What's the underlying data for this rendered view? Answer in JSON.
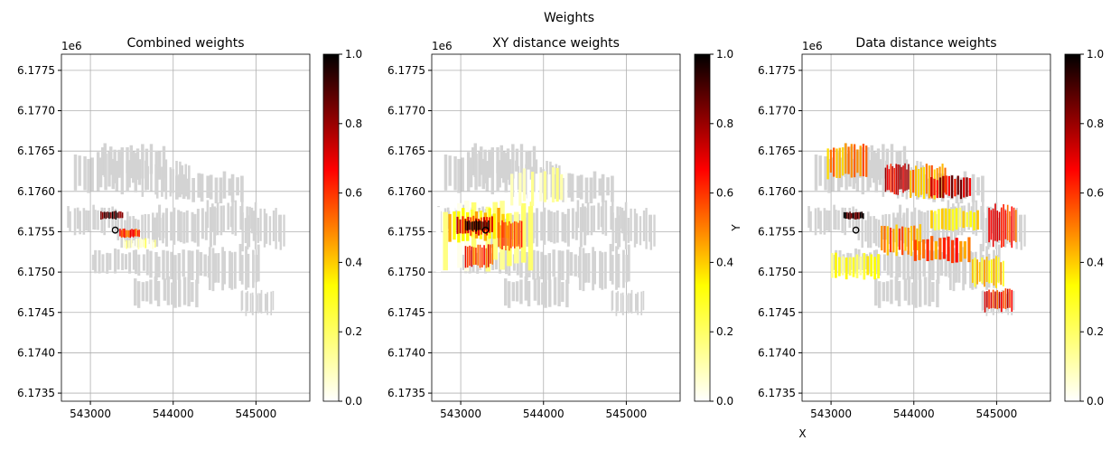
{
  "figure": {
    "title": "Weights"
  },
  "colormap": {
    "name": "hot_r",
    "stops": [
      "#ffffff",
      "#ffff00",
      "#ff0000",
      "#000000"
    ]
  },
  "background_color": "#d3d3d3",
  "point_marker": {
    "x": 543300,
    "y": 6175520
  },
  "chart_data": [
    {
      "type": "scatter",
      "title": "Combined weights",
      "xlabel": "",
      "ylabel": "",
      "xlim": [
        542650,
        545650
      ],
      "ylim": [
        6173400,
        6177700
      ],
      "xticks": [
        543000,
        544000,
        545000
      ],
      "yticks": [
        6.1735,
        6.174,
        6.1745,
        6.175,
        6.1755,
        6.176,
        6.1765,
        6.177,
        6.1775
      ],
      "y_offset_label": "1e6",
      "grid": true,
      "colorbar": {
        "range": [
          0,
          1
        ],
        "ticks": [
          "0.0",
          "0.2",
          "0.4",
          "0.6",
          "0.8",
          "1.0"
        ]
      },
      "weighted_regions": [
        {
          "x": [
            543120,
            543400
          ],
          "y": [
            6175650,
            6175760
          ],
          "weight": 0.9
        },
        {
          "x": [
            543350,
            543600
          ],
          "y": [
            6175420,
            6175540
          ],
          "weight": 0.6
        },
        {
          "x": [
            543400,
            543800
          ],
          "y": [
            6175280,
            6175420
          ],
          "weight": 0.1
        }
      ]
    },
    {
      "type": "scatter",
      "title": "XY distance weights",
      "xlabel": "",
      "ylabel": "Y",
      "xlim": [
        542650,
        545650
      ],
      "ylim": [
        6173400,
        6177700
      ],
      "xticks": [
        543000,
        544000,
        545000
      ],
      "yticks": [
        6.1735,
        6.174,
        6.1745,
        6.175,
        6.1755,
        6.176,
        6.1765,
        6.177,
        6.1775
      ],
      "y_offset_label": "1e6",
      "grid": true,
      "colorbar": {
        "range": [
          0,
          1
        ],
        "ticks": [
          "0.0",
          "0.2",
          "0.4",
          "0.6",
          "0.8",
          "1.0"
        ]
      },
      "weighted_regions": [
        {
          "x": [
            542700,
            543900
          ],
          "y": [
            6175000,
            6175900
          ],
          "weight": 0.08
        },
        {
          "x": [
            542850,
            543600
          ],
          "y": [
            6175350,
            6175800
          ],
          "weight": 0.35
        },
        {
          "x": [
            542950,
            543400
          ],
          "y": [
            6175450,
            6175700
          ],
          "weight": 0.65
        },
        {
          "x": [
            543050,
            543350
          ],
          "y": [
            6175500,
            6175650
          ],
          "weight": 0.95
        },
        {
          "x": [
            543450,
            543750
          ],
          "y": [
            6175250,
            6175650
          ],
          "weight": 0.55
        },
        {
          "x": [
            543050,
            543400
          ],
          "y": [
            6175050,
            6175350
          ],
          "weight": 0.6
        },
        {
          "x": [
            543600,
            544300
          ],
          "y": [
            6175800,
            6176300
          ],
          "weight": 0.05
        }
      ]
    },
    {
      "type": "scatter",
      "title": "Data distance weights",
      "xlabel": "X",
      "ylabel": "",
      "xlim": [
        542650,
        545650
      ],
      "ylim": [
        6173400,
        6177700
      ],
      "xticks": [
        543000,
        544000,
        545000
      ],
      "yticks": [
        6.1735,
        6.174,
        6.1745,
        6.175,
        6.1755,
        6.176,
        6.1765,
        6.177,
        6.1775
      ],
      "y_offset_label": "1e6",
      "grid": true,
      "colorbar": {
        "range": [
          0,
          1
        ],
        "ticks": [
          "0.0",
          "0.2",
          "0.4",
          "0.6",
          "0.8",
          "1.0"
        ]
      },
      "weighted_regions": [
        {
          "x": [
            542950,
            543450
          ],
          "y": [
            6176150,
            6176600
          ],
          "weight": 0.5
        },
        {
          "x": [
            543650,
            543950
          ],
          "y": [
            6175950,
            6176350
          ],
          "weight": 0.7
        },
        {
          "x": [
            543950,
            544400
          ],
          "y": [
            6175900,
            6176350
          ],
          "weight": 0.45
        },
        {
          "x": [
            544200,
            544700
          ],
          "y": [
            6175900,
            6176200
          ],
          "weight": 0.75
        },
        {
          "x": [
            543150,
            543400
          ],
          "y": [
            6175650,
            6175750
          ],
          "weight": 0.95
        },
        {
          "x": [
            543600,
            544100
          ],
          "y": [
            6175200,
            6175600
          ],
          "weight": 0.5
        },
        {
          "x": [
            543000,
            543600
          ],
          "y": [
            6174900,
            6175250
          ],
          "weight": 0.25
        },
        {
          "x": [
            544000,
            544700
          ],
          "y": [
            6175100,
            6175450
          ],
          "weight": 0.55
        },
        {
          "x": [
            544200,
            544800
          ],
          "y": [
            6175500,
            6175800
          ],
          "weight": 0.3
        },
        {
          "x": [
            544900,
            545250
          ],
          "y": [
            6175300,
            6175850
          ],
          "weight": 0.6
        },
        {
          "x": [
            544700,
            545100
          ],
          "y": [
            6174800,
            6175200
          ],
          "weight": 0.35
        },
        {
          "x": [
            544850,
            545200
          ],
          "y": [
            6174500,
            6174800
          ],
          "weight": 0.65
        }
      ]
    }
  ]
}
